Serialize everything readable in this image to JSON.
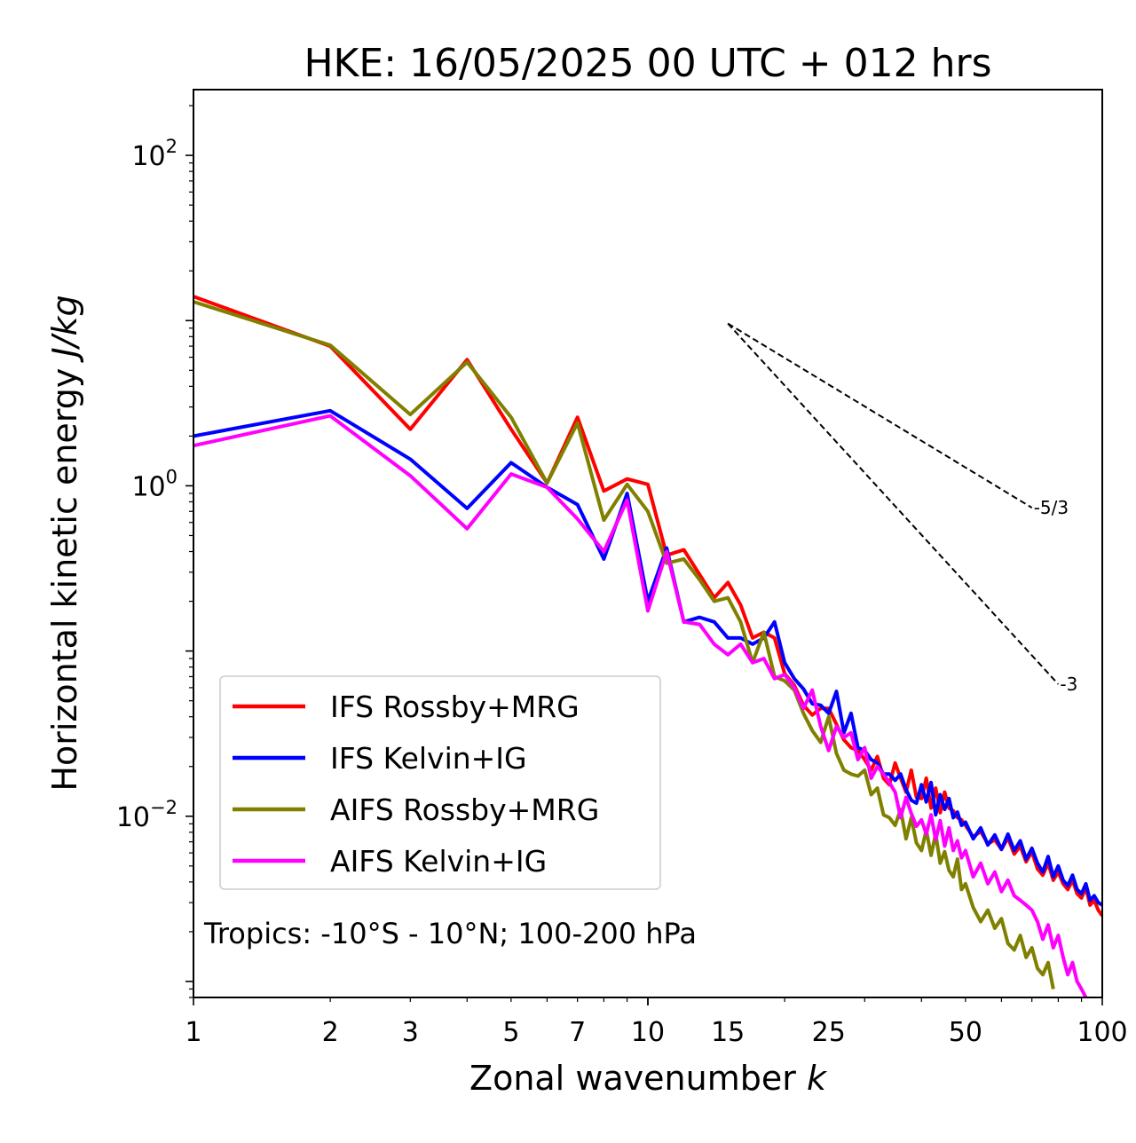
{
  "chart_data": {
    "type": "line",
    "title": "HKE: 16/05/2025 00 UTC + 012 hrs",
    "xlabel": "Zonal wavenumber",
    "xlabel_var": "k",
    "ylabel": "Horizontal kinetic energy",
    "ylabel_unit": "J/kg",
    "xscale": "log",
    "yscale": "log",
    "xlim": [
      1,
      100
    ],
    "ylim": [
      0.0008,
      250
    ],
    "x_ticks": [
      {
        "value": 1,
        "label": "1"
      },
      {
        "value": 2,
        "label": "2"
      },
      {
        "value": 3,
        "label": "3"
      },
      {
        "value": 5,
        "label": "5"
      },
      {
        "value": 7,
        "label": "7"
      },
      {
        "value": 10,
        "label": "10"
      },
      {
        "value": 15,
        "label": "15"
      },
      {
        "value": 25,
        "label": "25"
      },
      {
        "value": 50,
        "label": "50"
      },
      {
        "value": 100,
        "label": "100"
      }
    ],
    "y_ticks": [
      {
        "value": 100,
        "base": "10",
        "exp": "2"
      },
      {
        "value": 1,
        "base": "10",
        "exp": "0"
      },
      {
        "value": 0.01,
        "base": "10",
        "exp": "−2"
      }
    ],
    "annotation": "Tropics: -10°S - 10°N; 100-200 hPa",
    "legend_position": "lower-left",
    "series": [
      {
        "name": "IFS Rossby+MRG",
        "color": "#ff0000",
        "x": [
          1,
          2,
          3,
          4,
          5,
          6,
          7,
          8,
          9,
          10,
          11,
          12,
          13,
          14,
          15,
          16,
          17,
          18,
          19,
          20,
          21,
          22,
          23,
          24,
          25,
          26,
          27,
          28,
          29,
          30,
          31,
          32,
          33,
          34,
          35,
          36,
          37,
          38,
          39,
          40,
          41,
          42,
          43,
          44,
          45,
          46,
          47,
          48,
          49,
          50,
          52,
          54,
          56,
          58,
          60,
          62,
          64,
          66,
          68,
          70,
          72,
          74,
          76,
          78,
          80,
          82,
          84,
          86,
          88,
          90,
          92,
          94,
          96,
          98,
          100
        ],
        "y": [
          14,
          7,
          2.2,
          5.8,
          2.2,
          1.04,
          2.6,
          0.93,
          1.1,
          1.02,
          0.38,
          0.41,
          0.29,
          0.21,
          0.26,
          0.19,
          0.12,
          0.13,
          0.12,
          0.073,
          0.062,
          0.047,
          0.041,
          0.045,
          0.045,
          0.036,
          0.029,
          0.026,
          0.025,
          0.022,
          0.019,
          0.023,
          0.017,
          0.0155,
          0.021,
          0.017,
          0.014,
          0.019,
          0.013,
          0.0128,
          0.017,
          0.0112,
          0.0148,
          0.0105,
          0.014,
          0.0112,
          0.0108,
          0.0098,
          0.0095,
          0.0088,
          0.0075,
          0.0081,
          0.0068,
          0.0072,
          0.0063,
          0.0074,
          0.0059,
          0.0066,
          0.0053,
          0.0061,
          0.0048,
          0.0044,
          0.0052,
          0.0041,
          0.0046,
          0.0039,
          0.0036,
          0.0041,
          0.0034,
          0.0032,
          0.0037,
          0.0029,
          0.0031,
          0.0027,
          0.0025
        ]
      },
      {
        "name": "IFS Kelvin+IG",
        "color": "#0000ff",
        "x": [
          1,
          2,
          3,
          4,
          5,
          6,
          7,
          8,
          9,
          10,
          11,
          12,
          13,
          14,
          15,
          16,
          17,
          18,
          19,
          20,
          21,
          22,
          23,
          24,
          25,
          26,
          27,
          28,
          29,
          30,
          31,
          32,
          33,
          34,
          35,
          36,
          37,
          38,
          39,
          40,
          41,
          42,
          43,
          44,
          45,
          46,
          47,
          48,
          49,
          50,
          52,
          54,
          56,
          58,
          60,
          62,
          64,
          66,
          68,
          70,
          72,
          74,
          76,
          78,
          80,
          82,
          84,
          86,
          88,
          90,
          92,
          94,
          96,
          98,
          100
        ],
        "y": [
          2.0,
          2.85,
          1.45,
          0.73,
          1.38,
          0.98,
          0.77,
          0.36,
          0.9,
          0.2,
          0.42,
          0.15,
          0.16,
          0.15,
          0.12,
          0.12,
          0.11,
          0.12,
          0.15,
          0.085,
          0.068,
          0.059,
          0.048,
          0.047,
          0.042,
          0.057,
          0.032,
          0.042,
          0.026,
          0.025,
          0.022,
          0.021,
          0.018,
          0.018,
          0.0165,
          0.018,
          0.0145,
          0.0125,
          0.012,
          0.0155,
          0.0122,
          0.016,
          0.0102,
          0.0135,
          0.011,
          0.0128,
          0.0098,
          0.0106,
          0.0088,
          0.0092,
          0.0073,
          0.0085,
          0.0067,
          0.0077,
          0.0063,
          0.0078,
          0.0062,
          0.0071,
          0.0055,
          0.0064,
          0.0052,
          0.0046,
          0.0057,
          0.0043,
          0.005,
          0.0041,
          0.0038,
          0.0044,
          0.0036,
          0.0034,
          0.0039,
          0.0031,
          0.0033,
          0.003,
          0.0029
        ]
      },
      {
        "name": "AIFS Rossby+MRG",
        "color": "#808000",
        "x": [
          1,
          2,
          3,
          4,
          5,
          6,
          7,
          8,
          9,
          10,
          11,
          12,
          13,
          14,
          15,
          16,
          17,
          18,
          19,
          20,
          21,
          22,
          23,
          24,
          25,
          26,
          27,
          28,
          29,
          30,
          31,
          32,
          33,
          34,
          35,
          36,
          37,
          38,
          39,
          40,
          41,
          42,
          43,
          44,
          45,
          46,
          47,
          48,
          49,
          50,
          52,
          54,
          56,
          58,
          60,
          62,
          64,
          66,
          68,
          70,
          72,
          74,
          76,
          78
        ],
        "y": [
          13,
          7.1,
          2.7,
          5.6,
          2.6,
          1.04,
          2.4,
          0.62,
          1.02,
          0.7,
          0.34,
          0.36,
          0.27,
          0.2,
          0.21,
          0.15,
          0.085,
          0.13,
          0.07,
          0.066,
          0.058,
          0.042,
          0.033,
          0.028,
          0.04,
          0.024,
          0.019,
          0.018,
          0.0175,
          0.019,
          0.0135,
          0.0148,
          0.0102,
          0.0098,
          0.0088,
          0.011,
          0.0073,
          0.0098,
          0.0069,
          0.0062,
          0.0082,
          0.0058,
          0.0078,
          0.0052,
          0.0061,
          0.0047,
          0.0043,
          0.0055,
          0.0036,
          0.0039,
          0.0028,
          0.0023,
          0.0027,
          0.0021,
          0.0024,
          0.0017,
          0.00155,
          0.0019,
          0.0014,
          0.0016,
          0.0012,
          0.0011,
          0.0013,
          0.0009
        ]
      },
      {
        "name": "AIFS Kelvin+IG",
        "color": "#ff00ff",
        "x": [
          1,
          2,
          3,
          4,
          5,
          6,
          7,
          8,
          9,
          10,
          11,
          12,
          13,
          14,
          15,
          16,
          17,
          18,
          19,
          20,
          21,
          22,
          23,
          24,
          25,
          26,
          27,
          28,
          29,
          30,
          31,
          32,
          33,
          34,
          35,
          36,
          37,
          38,
          39,
          40,
          41,
          42,
          43,
          44,
          45,
          46,
          47,
          48,
          49,
          50,
          52,
          54,
          56,
          58,
          60,
          62,
          64,
          66,
          68,
          70,
          72,
          74,
          76,
          78,
          80,
          82,
          84,
          86,
          88,
          90,
          92
        ],
        "y": [
          1.75,
          2.65,
          1.15,
          0.55,
          1.18,
          0.98,
          0.63,
          0.4,
          0.82,
          0.175,
          0.4,
          0.15,
          0.145,
          0.11,
          0.095,
          0.11,
          0.085,
          0.09,
          0.068,
          0.072,
          0.06,
          0.045,
          0.058,
          0.035,
          0.025,
          0.035,
          0.03,
          0.032,
          0.022,
          0.026,
          0.017,
          0.02,
          0.018,
          0.016,
          0.014,
          0.0098,
          0.013,
          0.0104,
          0.0087,
          0.0095,
          0.0078,
          0.0102,
          0.0072,
          0.0094,
          0.0066,
          0.0085,
          0.0062,
          0.0071,
          0.0056,
          0.0062,
          0.0043,
          0.0052,
          0.0039,
          0.0046,
          0.0035,
          0.0041,
          0.0033,
          0.0031,
          0.0029,
          0.0027,
          0.0023,
          0.0018,
          0.0022,
          0.0016,
          0.0019,
          0.0014,
          0.0011,
          0.0013,
          0.001,
          0.0009,
          0.0008
        ]
      }
    ],
    "reference_slopes": [
      {
        "label": "-5/3",
        "x": [
          15,
          70
        ],
        "y": [
          9.6,
          0.737
        ]
      },
      {
        "label": "-3",
        "x": [
          15,
          80
        ],
        "y": [
          9.6,
          0.063
        ]
      }
    ]
  }
}
